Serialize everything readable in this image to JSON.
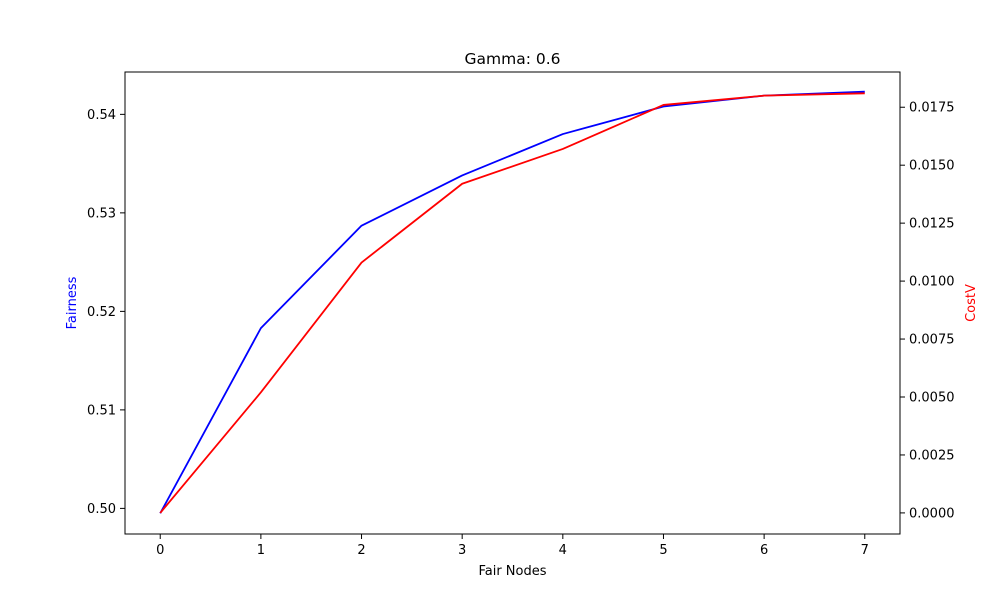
{
  "chart_data": {
    "type": "line",
    "title": "Gamma: 0.6",
    "xlabel": "Fair Nodes",
    "ylabel_left": "Fairness",
    "ylabel_right": "CostV",
    "x": [
      0,
      1,
      2,
      3,
      4,
      5,
      6,
      7
    ],
    "xlim": [
      -0.35,
      7.35
    ],
    "ylim_left": [
      0.4974,
      0.5443
    ],
    "ylim_right": [
      -0.00091,
      0.01902
    ],
    "xticks": [
      "0",
      "1",
      "2",
      "3",
      "4",
      "5",
      "6",
      "7"
    ],
    "yticks_left": [
      "0.50",
      "0.51",
      "0.52",
      "0.53",
      "0.54"
    ],
    "yticks_left_values": [
      0.5,
      0.51,
      0.52,
      0.53,
      0.54
    ],
    "yticks_right": [
      "0.0000",
      "0.0025",
      "0.0050",
      "0.0075",
      "0.0100",
      "0.0125",
      "0.0150",
      "0.0175"
    ],
    "yticks_right_values": [
      0.0,
      0.0025,
      0.005,
      0.0075,
      0.01,
      0.0125,
      0.015,
      0.0175
    ],
    "grid": false,
    "series": [
      {
        "axis": "left",
        "color": "#0000ff",
        "values": [
          0.4995,
          0.5183,
          0.5287,
          0.5338,
          0.538,
          0.5408,
          0.5419,
          0.5423
        ]
      },
      {
        "axis": "right",
        "color": "#ff0000",
        "values": [
          0.0,
          0.0052,
          0.0108,
          0.0142,
          0.0157,
          0.0176,
          0.018,
          0.0181
        ]
      }
    ],
    "colors": {
      "left_axis_label": "#0000ff",
      "right_axis_label": "#ff0000"
    }
  }
}
